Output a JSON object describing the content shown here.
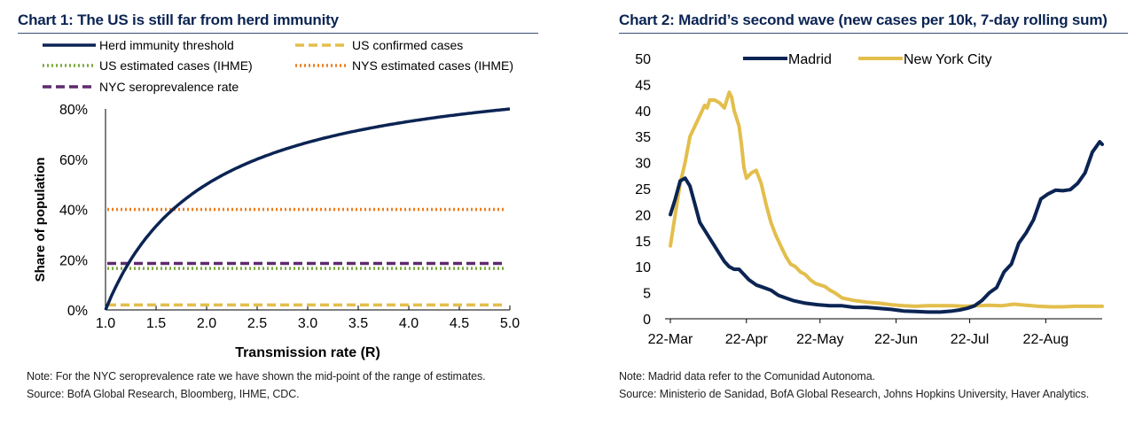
{
  "colors": {
    "navy": "#0b2453",
    "gold": "#e3be4c",
    "green": "#7aa83a",
    "orange": "#ee7d1f",
    "purple": "#5f2a6e",
    "title": "#0b2453"
  },
  "chart_data": [
    {
      "id": "chart1",
      "type": "line",
      "title": "Chart 1: The US is still far from herd immunity",
      "xlabel": "Transmission rate (R)",
      "ylabel": "Share of population",
      "xlim": [
        1.0,
        5.0
      ],
      "ylim": [
        0,
        80
      ],
      "x_ticks": [
        "1.0",
        "1.5",
        "2.0",
        "2.5",
        "3.0",
        "3.5",
        "4.0",
        "4.5",
        "5.0"
      ],
      "y_ticks": [
        "0%",
        "20%",
        "40%",
        "60%",
        "80%"
      ],
      "grid": false,
      "legend_placement": "top",
      "series": [
        {
          "name": "Herd immunity threshold",
          "style": "solid",
          "color": "navy",
          "formula": "(1 - 1/R) * 100",
          "x": [
            1.0,
            1.25,
            1.5,
            1.75,
            2.0,
            2.5,
            3.0,
            3.5,
            4.0,
            4.5,
            5.0
          ],
          "values": [
            0,
            20,
            33.3,
            42.9,
            50,
            60,
            66.7,
            71.4,
            75,
            77.8,
            80
          ]
        },
        {
          "name": "US confirmed cases",
          "style": "dashed",
          "color": "gold",
          "constant": 2
        },
        {
          "name": "US estimated cases (IHME)",
          "style": "dotted",
          "color": "green",
          "constant": 16.5
        },
        {
          "name": "NYS estimated cases (IHME)",
          "style": "dotted",
          "color": "orange",
          "constant": 40
        },
        {
          "name": "NYC seroprevalence rate",
          "style": "dashed",
          "color": "purple",
          "constant": 18.5
        }
      ],
      "note": "Note: For the NYC seroprevalence rate we have shown the mid-point of the range of estimates.",
      "source": "Source: BofA Global Research, Bloomberg, IHME, CDC."
    },
    {
      "id": "chart2",
      "type": "line",
      "title": "Chart 2: Madrid’s second wave (new cases per 10k, 7-day rolling sum)",
      "xlabel": "",
      "ylabel": "",
      "xlim": [
        "2020-03-22",
        "2020-09-15"
      ],
      "ylim": [
        0,
        50
      ],
      "x_tick_labels": [
        "22-Mar",
        "22-Apr",
        "22-May",
        "22-Jun",
        "22-Jul",
        "22-Aug"
      ],
      "x_tick_days": [
        0,
        31,
        61,
        92,
        122,
        153
      ],
      "y_ticks": [
        "0",
        "5",
        "10",
        "15",
        "20",
        "25",
        "30",
        "35",
        "40",
        "45",
        "50"
      ],
      "grid": false,
      "legend_placement": "top",
      "x_unit": "days since 22-Mar",
      "series": [
        {
          "name": "Madrid",
          "color": "navy",
          "x": [
            0,
            2,
            4,
            6,
            8,
            10,
            12,
            14,
            16,
            18,
            20,
            22,
            24,
            26,
            28,
            30,
            32,
            35,
            38,
            41,
            44,
            47,
            50,
            55,
            60,
            65,
            70,
            75,
            80,
            85,
            90,
            95,
            100,
            105,
            110,
            115,
            118,
            121,
            124,
            127,
            130,
            133,
            136,
            139,
            142,
            145,
            148,
            151,
            154,
            157,
            160,
            163,
            166,
            169,
            172,
            175,
            176
          ],
          "values": [
            20,
            23,
            26.5,
            27,
            25.5,
            22,
            18.5,
            17,
            15.5,
            14,
            12.5,
            11,
            10,
            9.5,
            9.5,
            8.5,
            7.5,
            6.5,
            6,
            5.5,
            4.5,
            4,
            3.5,
            3,
            2.7,
            2.5,
            2.5,
            2.2,
            2.2,
            2,
            1.8,
            1.5,
            1.4,
            1.3,
            1.3,
            1.5,
            1.7,
            2,
            2.5,
            3.5,
            5,
            6,
            9,
            10.5,
            14.5,
            16.5,
            19,
            23,
            24,
            24.7,
            24.6,
            24.8,
            26,
            28,
            32,
            34,
            33.5
          ]
        },
        {
          "name": "New York City",
          "color": "gold",
          "x": [
            0,
            2,
            4,
            6,
            8,
            10,
            12,
            14,
            15,
            16,
            18,
            20,
            22,
            24,
            25,
            26,
            28,
            29,
            30,
            31,
            33,
            35,
            37,
            39,
            41,
            43,
            45,
            47,
            49,
            51,
            53,
            55,
            57,
            59,
            61,
            63,
            65,
            67,
            70,
            75,
            80,
            85,
            90,
            95,
            100,
            105,
            110,
            115,
            120,
            125,
            130,
            135,
            140,
            145,
            150,
            155,
            160,
            165,
            170,
            176
          ],
          "values": [
            14,
            20,
            26,
            30,
            35,
            37,
            39,
            41,
            40.5,
            42,
            42,
            41.5,
            40.5,
            43.5,
            42.5,
            40,
            37,
            33.5,
            29,
            27,
            28,
            28.5,
            26,
            22,
            18.5,
            16,
            14,
            12,
            10.5,
            10,
            9,
            8.5,
            7.5,
            6.8,
            6.5,
            6.2,
            5.5,
            5,
            4,
            3.5,
            3.2,
            3,
            2.7,
            2.5,
            2.4,
            2.5,
            2.5,
            2.5,
            2.4,
            2.5,
            2.6,
            2.5,
            2.8,
            2.6,
            2.4,
            2.3,
            2.3,
            2.4,
            2.4,
            2.4
          ]
        }
      ],
      "note": "Note: Madrid data refer to the Comunidad Autonoma.",
      "source": "Source: Ministerio de Sanidad, BofA Global Research, Johns Hopkins University, Haver Analytics."
    }
  ]
}
